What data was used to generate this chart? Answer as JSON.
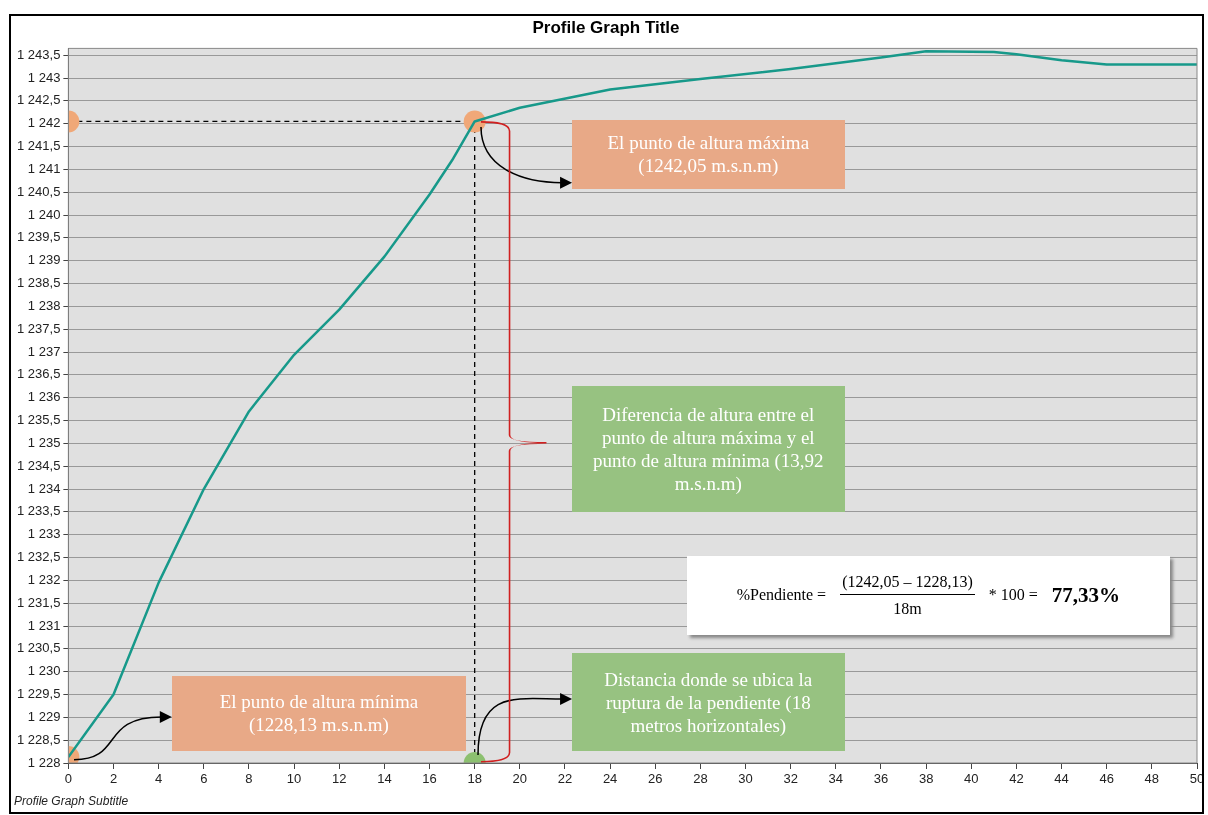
{
  "chart_data": {
    "type": "line",
    "title": "Profile Graph Title",
    "subtitle": "Profile Graph Subtitle",
    "series": [
      {
        "color": "#17998a",
        "x": [
          0,
          2,
          4,
          6,
          8,
          10,
          12,
          14,
          16,
          17,
          18,
          20,
          24,
          28,
          32,
          36,
          38,
          41,
          42,
          44,
          46,
          50
        ],
        "values": [
          1228.13,
          1229.5,
          1231.95,
          1234.0,
          1235.7,
          1236.94,
          1237.93,
          1239.09,
          1240.45,
          1241.2,
          1242.05,
          1242.35,
          1242.75,
          1242.98,
          1243.2,
          1243.45,
          1243.59,
          1243.57,
          1243.52,
          1243.39,
          1243.3,
          1243.3
        ]
      },
      {
        "type": "scatter",
        "x": [
          0,
          18,
          0,
          18
        ],
        "values": [
          1228.13,
          1242.05,
          1242.05,
          1228
        ],
        "colors": [
          "#f0a878",
          "#f0a878",
          "#f0a878",
          "#8cc070"
        ]
      }
    ],
    "xlim": [
      0,
      50
    ],
    "ylim": [
      1228,
      1243.65
    ],
    "xticks": [
      0,
      2,
      4,
      6,
      8,
      10,
      12,
      14,
      16,
      18,
      20,
      22,
      24,
      26,
      28,
      30,
      32,
      34,
      36,
      38,
      40,
      42,
      44,
      46,
      48,
      50
    ],
    "yticks": [
      {
        "value": 1228,
        "label": "1 228"
      },
      {
        "value": 1228.5,
        "label": "1 228,5"
      },
      {
        "value": 1229,
        "label": "1 229"
      },
      {
        "value": 1229.5,
        "label": "1 229,5"
      },
      {
        "value": 1230,
        "label": "1 230"
      },
      {
        "value": 1230.5,
        "label": "1 230,5"
      },
      {
        "value": 1231,
        "label": "1 231"
      },
      {
        "value": 1231.5,
        "label": "1 231,5"
      },
      {
        "value": 1232,
        "label": "1 232"
      },
      {
        "value": 1232.5,
        "label": "1 232,5"
      },
      {
        "value": 1233,
        "label": "1 233"
      },
      {
        "value": 1233.5,
        "label": "1 233,5"
      },
      {
        "value": 1234,
        "label": "1 234"
      },
      {
        "value": 1234.5,
        "label": "1 234,5"
      },
      {
        "value": 1235,
        "label": "1 235"
      },
      {
        "value": 1235.5,
        "label": "1 235,5"
      },
      {
        "value": 1236,
        "label": "1 236"
      },
      {
        "value": 1236.5,
        "label": "1 236,5"
      },
      {
        "value": 1237,
        "label": "1 237"
      },
      {
        "value": 1237.5,
        "label": "1 237,5"
      },
      {
        "value": 1238,
        "label": "1 238"
      },
      {
        "value": 1238.5,
        "label": "1 238,5"
      },
      {
        "value": 1239,
        "label": "1 239"
      },
      {
        "value": 1239.5,
        "label": "1 239,5"
      },
      {
        "value": 1240,
        "label": "1 240"
      },
      {
        "value": 1240.5,
        "label": "1 240,5"
      },
      {
        "value": 1241,
        "label": "1 241"
      },
      {
        "value": 1241.5,
        "label": "1 241,5"
      },
      {
        "value": 1242,
        "label": "1 242"
      },
      {
        "value": 1242.5,
        "label": "1 242,5"
      },
      {
        "value": 1243,
        "label": "1 243"
      },
      {
        "value": 1243.5,
        "label": "1 243,5"
      }
    ],
    "ref_lines": [
      {
        "axis": "y",
        "value": 1242.05,
        "line_style": "dashed",
        "color": "#000000"
      },
      {
        "axis": "x",
        "value": 18,
        "line_style": "dashed",
        "color": "#000000"
      }
    ],
    "annotations": [
      "El punto de altura mínima\n(1228,13 m.s.n.m)",
      "El punto de altura máxima\n(1242,05 m.s.n.m)",
      "Diferencia de altura entre el punto de altura máxima y el punto de altura mínima (13,92 m.s.n.m)",
      "Distancia donde se ubica la ruptura de la pendiente (18 metros horizontales)",
      "%Pendiente =",
      "(1242,05 – 1228,13)",
      "18m",
      "* 100 =",
      "77,33%"
    ],
    "grid": "y",
    "legend": false,
    "line_style": "solid"
  }
}
